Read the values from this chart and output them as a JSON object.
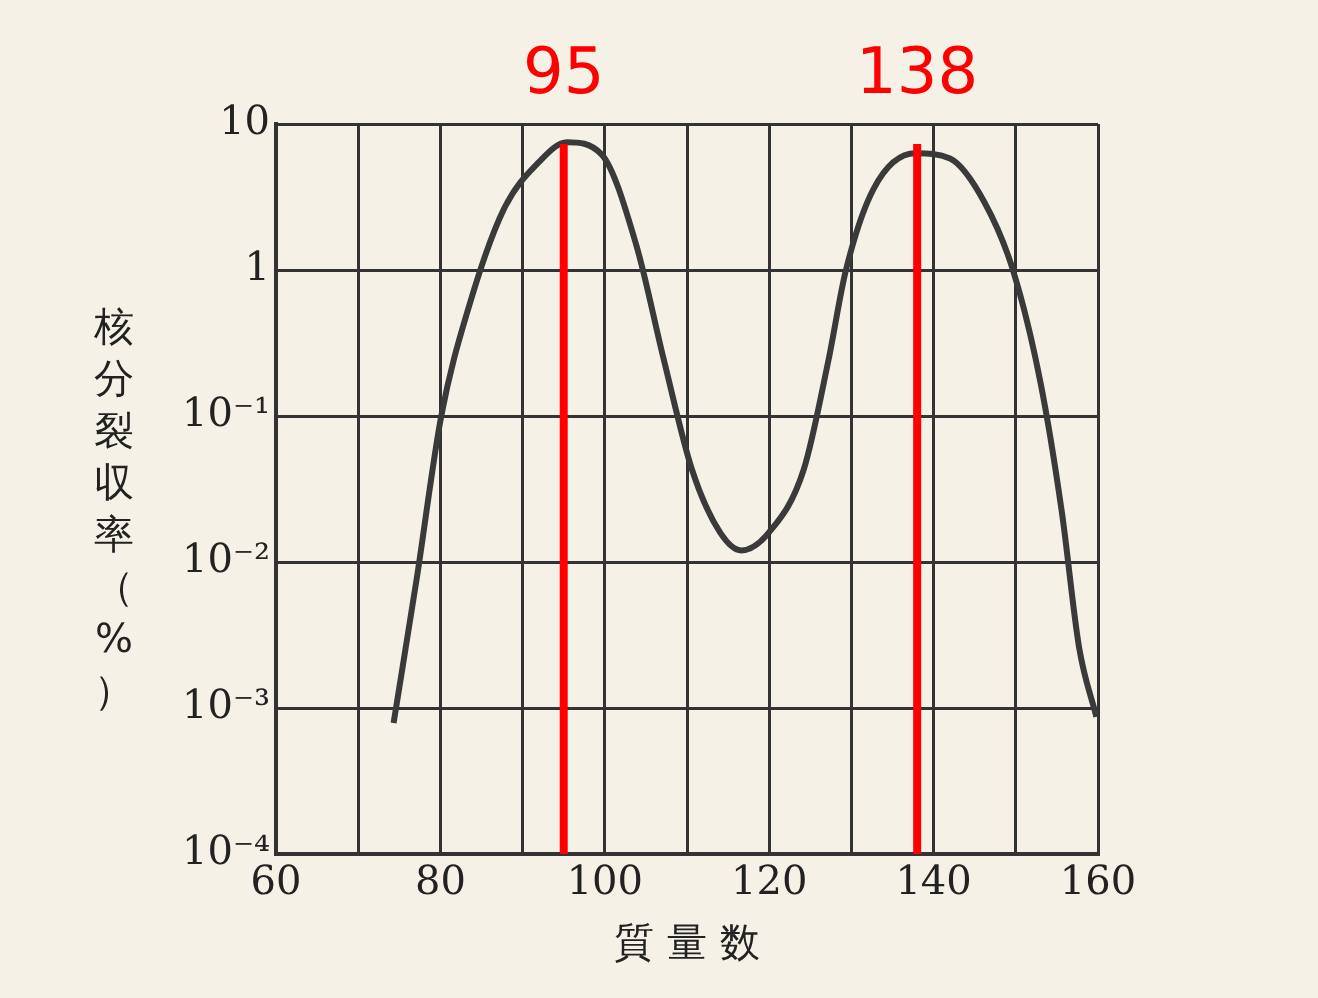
{
  "chart_data": {
    "type": "line",
    "xlabel": "質 量 数",
    "ylabel": "核分裂収率（%）",
    "x": [
      74.3,
      77.1,
      80.1,
      83.5,
      87.7,
      92,
      95.4,
      99.6,
      103.8,
      107.2,
      110.6,
      114,
      116.6,
      120,
      124.2,
      127.2,
      129.3,
      132.7,
      137.8,
      142,
      146.2,
      149.7,
      153,
      155.6,
      157.7,
      159.8
    ],
    "series": [
      {
        "color": "#3a3a3a",
        "values": [
          0.00079,
          0.0076,
          0.1,
          0.57,
          2.6,
          5.5,
          7.5,
          6.2,
          1.5,
          0.24,
          0.043,
          0.016,
          0.012,
          0.016,
          0.043,
          0.24,
          0.98,
          3.6,
          6.3,
          5.8,
          2.9,
          0.98,
          0.17,
          0.022,
          0.0026,
          0.00087
        ]
      }
    ],
    "log": "y",
    "xlim": [
      60,
      160
    ],
    "ylim": [
      0.0001,
      10
    ],
    "xticks": [
      60,
      {
        "value": 70,
        "label": null
      },
      80,
      {
        "value": 90,
        "label": null
      },
      100,
      {
        "value": 110,
        "label": null
      },
      120,
      {
        "value": 130,
        "label": null
      },
      140,
      {
        "value": 150,
        "label": null
      },
      160
    ],
    "yticks": [
      {
        "value": 0.0001,
        "label": "10⁻⁴"
      },
      {
        "value": 0.001,
        "label": "10⁻³"
      },
      {
        "value": 0.01,
        "label": "10⁻²"
      },
      {
        "value": 0.1,
        "label": "10⁻¹"
      },
      1,
      10
    ],
    "grid": true,
    "marker": "none",
    "line_style": "solid",
    "ref_lines": [
      {
        "axis": "x",
        "value": 95,
        "label": "95",
        "color": "#ff0000"
      },
      {
        "axis": "x",
        "value": 138,
        "label": "138",
        "color": "#ff0000"
      }
    ]
  }
}
